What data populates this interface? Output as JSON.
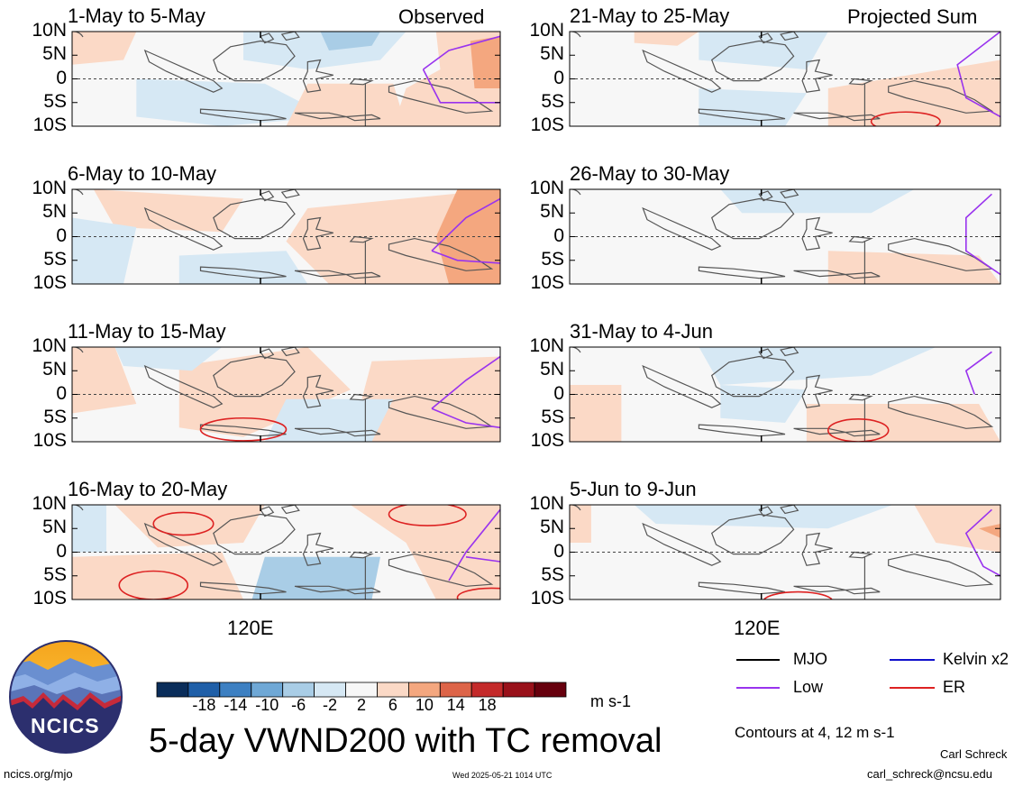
{
  "observed_label": "Observed",
  "projected_label": "Projected Sum",
  "panels_left": [
    {
      "title": "1-May to 5-May"
    },
    {
      "title": "6-May to 10-May"
    },
    {
      "title": "11-May to 15-May"
    },
    {
      "title": "16-May to 20-May"
    }
  ],
  "panels_right": [
    {
      "title": "21-May to 25-May"
    },
    {
      "title": "26-May to 30-May"
    },
    {
      "title": "31-May to 4-Jun"
    },
    {
      "title": "5-Jun to 9-Jun"
    }
  ],
  "lat_labels": [
    "10N",
    "5N",
    "0",
    "5S",
    "10S"
  ],
  "lon_label": "120E",
  "colorbar": {
    "ticks": [
      "-18",
      "-14",
      "-10",
      "-6",
      "-2",
      "2",
      "6",
      "10",
      "14",
      "18"
    ],
    "colors": [
      "#0a2d5a",
      "#1f5fa8",
      "#3d80c2",
      "#6fa8d6",
      "#a9cde6",
      "#d6e8f4",
      "#f7f7f7",
      "#fbd9c6",
      "#f4a77f",
      "#dd6448",
      "#c42a2a",
      "#99111a",
      "#67000d"
    ],
    "units": "m s-1"
  },
  "title": "5-day VWND200 with TC removal",
  "legend": {
    "items": [
      {
        "label": "MJO",
        "color": "#000000"
      },
      {
        "label": "Kelvin x2",
        "color": "#1010cc"
      },
      {
        "label": "Low",
        "color": "#9933ee"
      },
      {
        "label": "ER",
        "color": "#dd2222"
      }
    ],
    "contours_note": "Contours at 4, 12 m s-1"
  },
  "logo_text": "NCICS",
  "footer": {
    "url": "ncics.org/mjo",
    "timestamp": "Wed 2025-05-21 1014 UTC",
    "author": "Carl Schreck",
    "email": "carl_schreck@ncsu.edu"
  }
}
